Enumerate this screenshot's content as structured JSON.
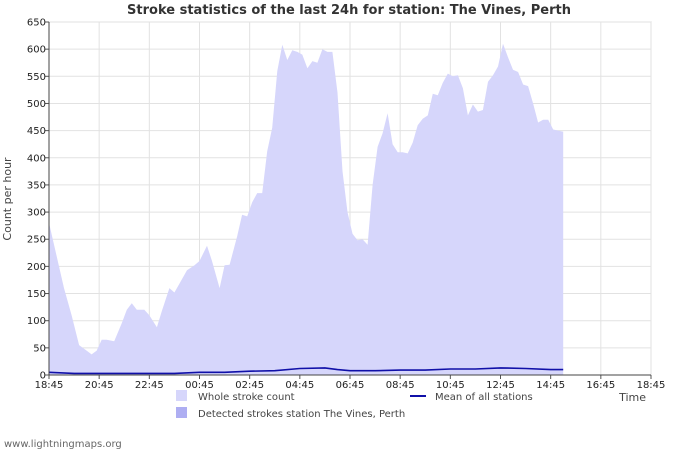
{
  "chart_data": {
    "type": "area",
    "title": "Stroke statistics of the last 24h for station: The Vines, Perth",
    "xlabel": "Time",
    "ylabel": "Count per hour",
    "ylim": [
      0,
      650
    ],
    "y_ticks": [
      0,
      50,
      100,
      150,
      200,
      250,
      300,
      350,
      400,
      450,
      500,
      550,
      600,
      650
    ],
    "x_ticks": [
      {
        "label": "18:45",
        "h": 0
      },
      {
        "label": "20:45",
        "h": 2
      },
      {
        "label": "22:45",
        "h": 4
      },
      {
        "label": "00:45",
        "h": 6
      },
      {
        "label": "02:45",
        "h": 8
      },
      {
        "label": "04:45",
        "h": 10
      },
      {
        "label": "06:45",
        "h": 12
      },
      {
        "label": "08:45",
        "h": 14
      },
      {
        "label": "10:45",
        "h": 16
      },
      {
        "label": "12:45",
        "h": 18
      },
      {
        "label": "14:45",
        "h": 20
      },
      {
        "label": "16:45",
        "h": 22
      },
      {
        "label": "18:45",
        "h": 24
      }
    ],
    "grid": true,
    "legend_position": "bottom",
    "series": [
      {
        "name": "Whole stroke count",
        "kind": "area",
        "color": "#d6d6fb",
        "points": [
          [
            0,
            280
          ],
          [
            0.3,
            220
          ],
          [
            0.6,
            160
          ],
          [
            0.9,
            110
          ],
          [
            1.2,
            55
          ],
          [
            1.5,
            45
          ],
          [
            1.7,
            38
          ],
          [
            1.9,
            45
          ],
          [
            2.1,
            65
          ],
          [
            2.3,
            65
          ],
          [
            2.6,
            62
          ],
          [
            2.9,
            95
          ],
          [
            3.1,
            120
          ],
          [
            3.3,
            132
          ],
          [
            3.5,
            120
          ],
          [
            3.8,
            120
          ],
          [
            4.0,
            110
          ],
          [
            4.3,
            88
          ],
          [
            4.5,
            118
          ],
          [
            4.8,
            160
          ],
          [
            5.0,
            152
          ],
          [
            5.2,
            168
          ],
          [
            5.5,
            193
          ],
          [
            5.8,
            202
          ],
          [
            6.0,
            210
          ],
          [
            6.3,
            238
          ],
          [
            6.5,
            210
          ],
          [
            6.8,
            160
          ],
          [
            7.0,
            202
          ],
          [
            7.2,
            203
          ],
          [
            7.5,
            255
          ],
          [
            7.7,
            295
          ],
          [
            7.9,
            292
          ],
          [
            8.1,
            318
          ],
          [
            8.3,
            335
          ],
          [
            8.5,
            335
          ],
          [
            8.7,
            412
          ],
          [
            8.9,
            455
          ],
          [
            9.1,
            560
          ],
          [
            9.3,
            608
          ],
          [
            9.5,
            580
          ],
          [
            9.7,
            598
          ],
          [
            9.9,
            595
          ],
          [
            10.1,
            590
          ],
          [
            10.3,
            565
          ],
          [
            10.5,
            578
          ],
          [
            10.7,
            575
          ],
          [
            10.9,
            600
          ],
          [
            11.1,
            595
          ],
          [
            11.3,
            595
          ],
          [
            11.5,
            520
          ],
          [
            11.7,
            375
          ],
          [
            11.9,
            300
          ],
          [
            12.1,
            260
          ],
          [
            12.3,
            248
          ],
          [
            12.5,
            250
          ],
          [
            12.7,
            240
          ],
          [
            12.9,
            350
          ],
          [
            13.1,
            420
          ],
          [
            13.3,
            445
          ],
          [
            13.5,
            482
          ],
          [
            13.7,
            425
          ],
          [
            13.9,
            410
          ],
          [
            14.1,
            410
          ],
          [
            14.3,
            408
          ],
          [
            14.5,
            428
          ],
          [
            14.7,
            460
          ],
          [
            14.9,
            472
          ],
          [
            15.1,
            478
          ],
          [
            15.3,
            518
          ],
          [
            15.5,
            515
          ],
          [
            15.7,
            538
          ],
          [
            15.9,
            555
          ],
          [
            16.1,
            550
          ],
          [
            16.3,
            552
          ],
          [
            16.5,
            528
          ],
          [
            16.7,
            478
          ],
          [
            16.9,
            498
          ],
          [
            17.1,
            485
          ],
          [
            17.3,
            488
          ],
          [
            17.5,
            540
          ],
          [
            17.7,
            552
          ],
          [
            17.9,
            568
          ],
          [
            18.1,
            610
          ],
          [
            18.3,
            585
          ],
          [
            18.5,
            562
          ],
          [
            18.7,
            558
          ],
          [
            18.9,
            535
          ],
          [
            19.1,
            532
          ],
          [
            19.3,
            500
          ],
          [
            19.5,
            465
          ],
          [
            19.7,
            470
          ],
          [
            19.9,
            470
          ],
          [
            20.1,
            452
          ],
          [
            20.3,
            450
          ],
          [
            20.5,
            448
          ]
        ]
      },
      {
        "name": "Detected strokes station The Vines, Perth",
        "kind": "area",
        "color": "#aeaef2",
        "points": [
          [
            0,
            0
          ],
          [
            20.5,
            0
          ]
        ]
      },
      {
        "name": "Mean of all stations",
        "kind": "line",
        "color": "#1010a8",
        "points": [
          [
            0,
            5
          ],
          [
            1,
            3
          ],
          [
            2,
            3
          ],
          [
            3,
            3
          ],
          [
            4,
            3
          ],
          [
            5,
            3
          ],
          [
            6,
            5
          ],
          [
            7,
            5
          ],
          [
            8,
            7
          ],
          [
            9,
            8
          ],
          [
            10,
            12
          ],
          [
            11,
            13
          ],
          [
            11.5,
            10
          ],
          [
            12,
            8
          ],
          [
            13,
            8
          ],
          [
            14,
            9
          ],
          [
            15,
            9
          ],
          [
            16,
            11
          ],
          [
            17,
            11
          ],
          [
            18,
            13
          ],
          [
            19,
            12
          ],
          [
            20,
            10
          ],
          [
            20.5,
            10
          ]
        ]
      }
    ]
  },
  "footer": {
    "credit": "www.lightningmaps.org"
  }
}
